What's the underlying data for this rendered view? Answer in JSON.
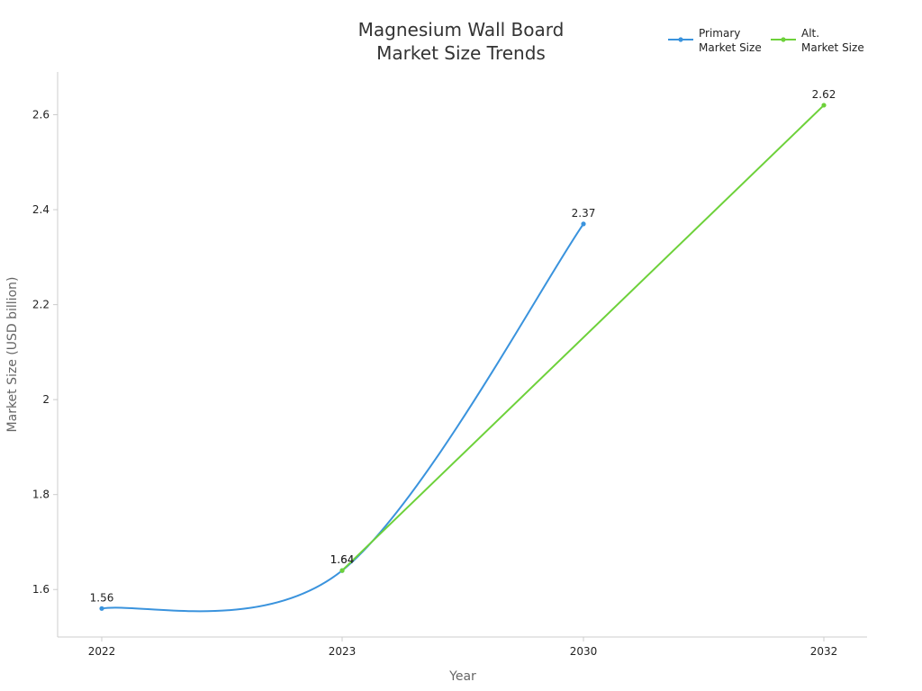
{
  "chart_data": {
    "type": "line",
    "title_lines": [
      "Magnesium Wall Board",
      "Market Size Trends"
    ],
    "xlabel": "Year",
    "ylabel": "Market Size (USD billion)",
    "categories": [
      "2022",
      "2023",
      "2030",
      "2032"
    ],
    "yticks": [
      "1.6",
      "1.8",
      "2",
      "2.2",
      "2.4",
      "2.6"
    ],
    "ylim": [
      1.5,
      2.69
    ],
    "grid": false,
    "legend_position": "top-right",
    "series": [
      {
        "name_lines": [
          "Primary",
          "Market Size"
        ],
        "color": "#3a93dd",
        "smooth": true,
        "points": [
          {
            "x": "2022",
            "y": 1.56,
            "label": "1.56"
          },
          {
            "x": "2023",
            "y": 1.64,
            "label": "1.64"
          },
          {
            "x": "2030",
            "y": 2.37,
            "label": "2.37"
          }
        ]
      },
      {
        "name_lines": [
          "Alt.",
          "Market Size"
        ],
        "color": "#6dd13a",
        "smooth": false,
        "points": [
          {
            "x": "2023",
            "y": 1.64,
            "label": "1.64"
          },
          {
            "x": "2032",
            "y": 2.62,
            "label": "2.62"
          }
        ]
      }
    ]
  }
}
